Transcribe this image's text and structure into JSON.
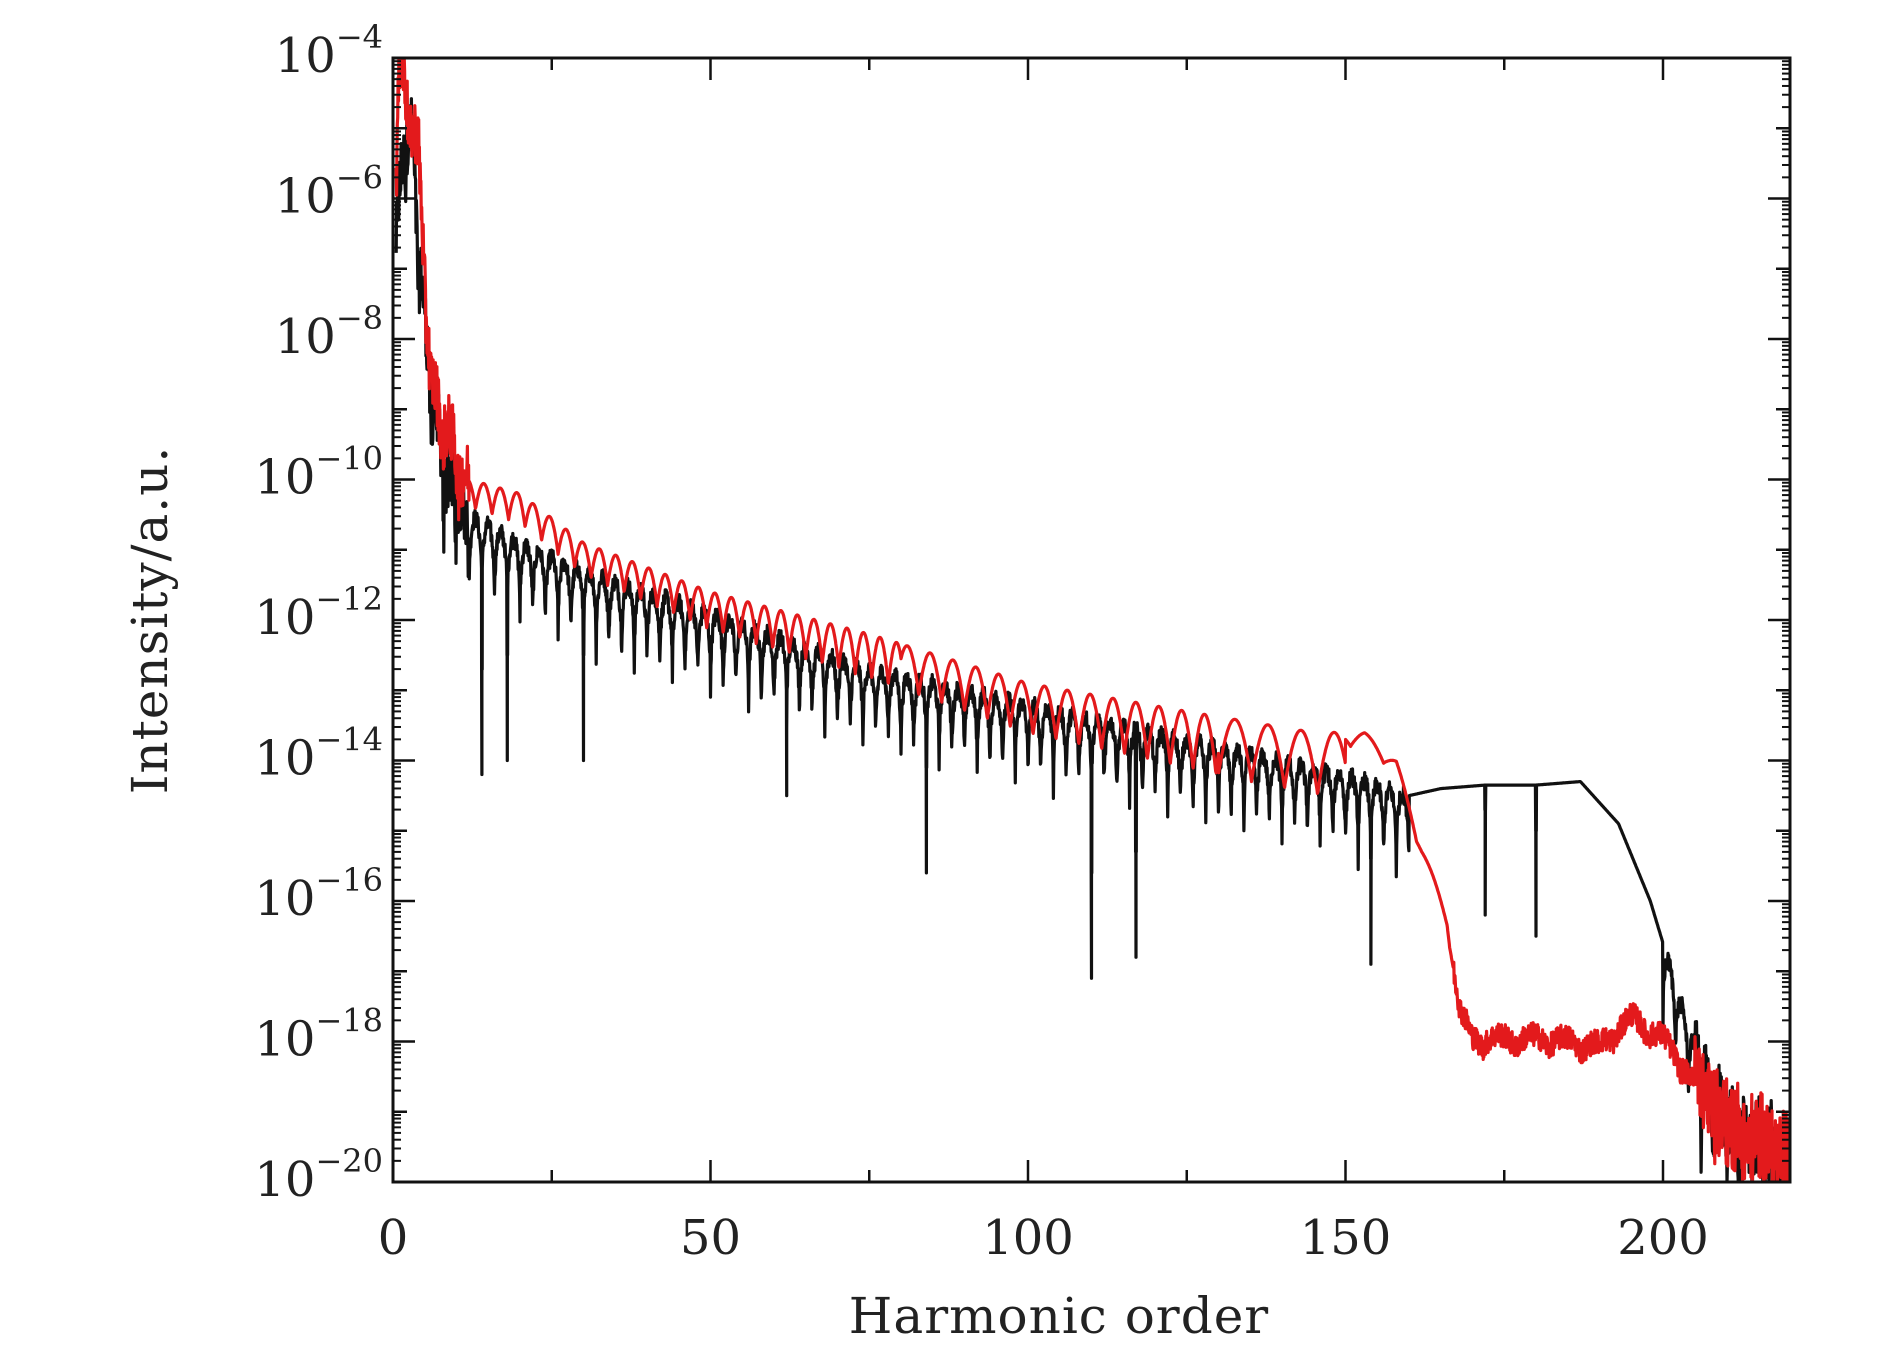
{
  "chart_data": {
    "type": "line",
    "title": "",
    "xlabel": "Harmonic order",
    "ylabel": "Intensity/a.u.",
    "xlim": [
      0,
      220
    ],
    "ylim_log10": [
      -20,
      -4
    ],
    "y_scale": "log",
    "x_ticks": [
      0,
      50,
      100,
      150,
      200
    ],
    "x_tick_labels": [
      "0",
      "50",
      "100",
      "150",
      "200"
    ],
    "y_ticks": [
      {
        "base": "10",
        "exp": "−4",
        "value": -4
      },
      {
        "base": "10",
        "exp": "−6",
        "value": -6
      },
      {
        "base": "10",
        "exp": "−8",
        "value": -8
      },
      {
        "base": "10",
        "exp": "−10",
        "value": -10
      },
      {
        "base": "10",
        "exp": "−12",
        "value": -12
      },
      {
        "base": "10",
        "exp": "−14",
        "value": -14
      },
      {
        "base": "10",
        "exp": "−16",
        "value": -16
      },
      {
        "base": "10",
        "exp": "−18",
        "value": -18
      },
      {
        "base": "10",
        "exp": "−20",
        "value": -20
      }
    ],
    "grid": false,
    "legend": "none",
    "series": [
      {
        "name": "black",
        "color": "#111111",
        "envelope_x": [
          0.5,
          2,
          3,
          4,
          6,
          8,
          12,
          20,
          30,
          50,
          75,
          100,
          125,
          150,
          160,
          165,
          172,
          180,
          187,
          193,
          198,
          203,
          208,
          214,
          220
        ],
        "envelope_log10": [
          -6.5,
          -4.8,
          -5.0,
          -6.5,
          -8.6,
          -9.7,
          -10.5,
          -10.9,
          -11.3,
          -11.9,
          -12.7,
          -13.2,
          -13.7,
          -14.2,
          -14.5,
          -14.4,
          -14.35,
          -14.35,
          -14.3,
          -14.9,
          -16.0,
          -17.5,
          -18.8,
          -19.2,
          -19.6
        ],
        "modulation_period": 2,
        "modulation_depth_log10": 1.2,
        "minima_x": [
          14,
          18,
          30,
          62,
          84,
          110,
          117,
          154,
          172,
          180
        ],
        "minima_log10": [
          -14.2,
          -14.0,
          -14.0,
          -14.5,
          -15.6,
          -17.1,
          -16.8,
          -16.9,
          -16.2,
          -16.5
        ]
      },
      {
        "name": "red",
        "color": "#e31a1c",
        "envelope_x": [
          0.5,
          1,
          2,
          4,
          6,
          8,
          12,
          20,
          30,
          50,
          75,
          100,
          125,
          145,
          153,
          158,
          162,
          166,
          168,
          170,
          175,
          182,
          190,
          195,
          200,
          205,
          210,
          215,
          220
        ],
        "envelope_log10": [
          -5.5,
          -4.0,
          -4.3,
          -5.2,
          -8.5,
          -9.0,
          -10.0,
          -10.2,
          -10.9,
          -11.6,
          -12.2,
          -12.9,
          -13.3,
          -13.6,
          -13.6,
          -14.0,
          -15.2,
          -16.2,
          -17.5,
          -17.9,
          -17.9,
          -17.9,
          -18.0,
          -17.6,
          -17.9,
          -18.5,
          -19.1,
          -19.4,
          -19.6
        ],
        "modulation_period": 3.8,
        "modulation_depth_log10": 0.5
      }
    ]
  }
}
